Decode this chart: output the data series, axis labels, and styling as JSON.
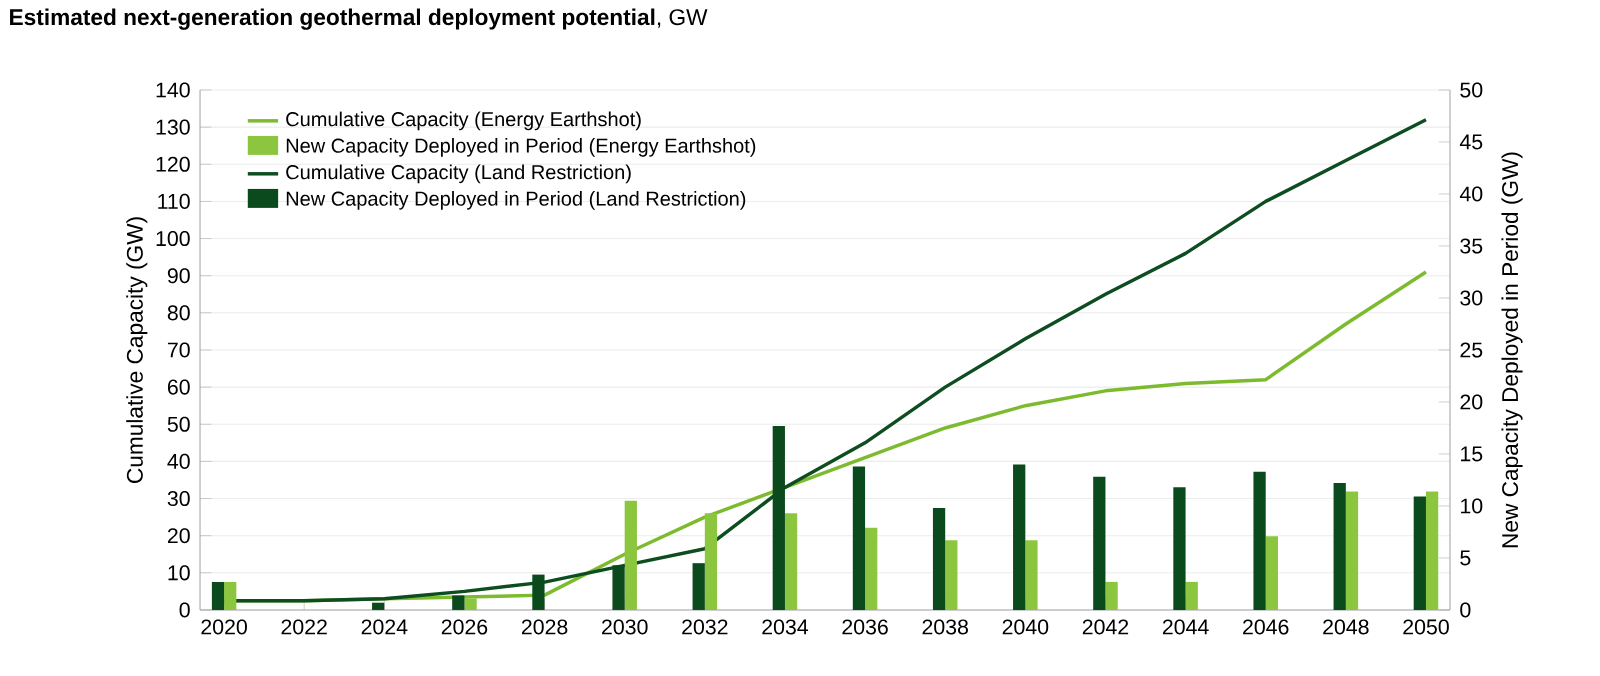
{
  "chart_data": {
    "type": "line",
    "title": "**Estimated next-generation geothermal deployment potential**, GW",
    "ylabel": "Cumulative Capacity (GW)",
    "y2label": "New Capacity Deployed in Period (GW)",
    "x": [
      2020,
      2022,
      2024,
      2026,
      2028,
      2030,
      2032,
      2034,
      2036,
      2038,
      2040,
      2042,
      2044,
      2046,
      2048,
      2050
    ],
    "xlim": [
      2019.4,
      2050.6
    ],
    "xticks": [
      2020,
      2022,
      2024,
      2026,
      2028,
      2030,
      2032,
      2034,
      2036,
      2038,
      2040,
      2042,
      2044,
      2046,
      2048,
      2050
    ],
    "ylim": [
      0,
      140
    ],
    "yticks": [
      0,
      10,
      20,
      30,
      40,
      50,
      60,
      70,
      80,
      90,
      100,
      110,
      120,
      130,
      140
    ],
    "y2lim": [
      0,
      50
    ],
    "y2ticks": [
      0,
      5,
      10,
      15,
      20,
      25,
      30,
      35,
      40,
      45,
      50
    ],
    "grid": "y",
    "legend": "top left",
    "series": [
      {
        "name": "Cumulative Capacity (Energy Earthshot)",
        "color": "#7dbb2e",
        "values": [
          2.5,
          2.5,
          3,
          3.5,
          4,
          15,
          25,
          33,
          41,
          49,
          55,
          59,
          61,
          62,
          77,
          91
        ]
      },
      {
        "name": "New Capacity Deployed in Period (Energy Earthshot)",
        "type": "bar",
        "axis": "y2",
        "color": "#8cc63f",
        "values": [
          2.7,
          0,
          0,
          1.1,
          0,
          10.5,
          9.3,
          9.3,
          7.9,
          6.7,
          6.7,
          2.7,
          2.7,
          7.1,
          11.4,
          11.4
        ]
      },
      {
        "name": "Cumulative Capacity (Land Restriction)",
        "color": "#0e4d20",
        "values": [
          2.5,
          2.5,
          3,
          5,
          7.5,
          12,
          16.5,
          33,
          45,
          60,
          73,
          85,
          96,
          110,
          121,
          132
        ]
      },
      {
        "name": "New Capacity Deployed in Period (Land Restriction)",
        "type": "bar",
        "axis": "y2",
        "color": "#0b4a1c",
        "values": [
          2.7,
          0,
          0.7,
          1.4,
          3.4,
          4.3,
          4.5,
          17.7,
          13.8,
          9.8,
          14,
          12.8,
          11.8,
          13.3,
          12.2,
          10.9
        ]
      }
    ]
  }
}
